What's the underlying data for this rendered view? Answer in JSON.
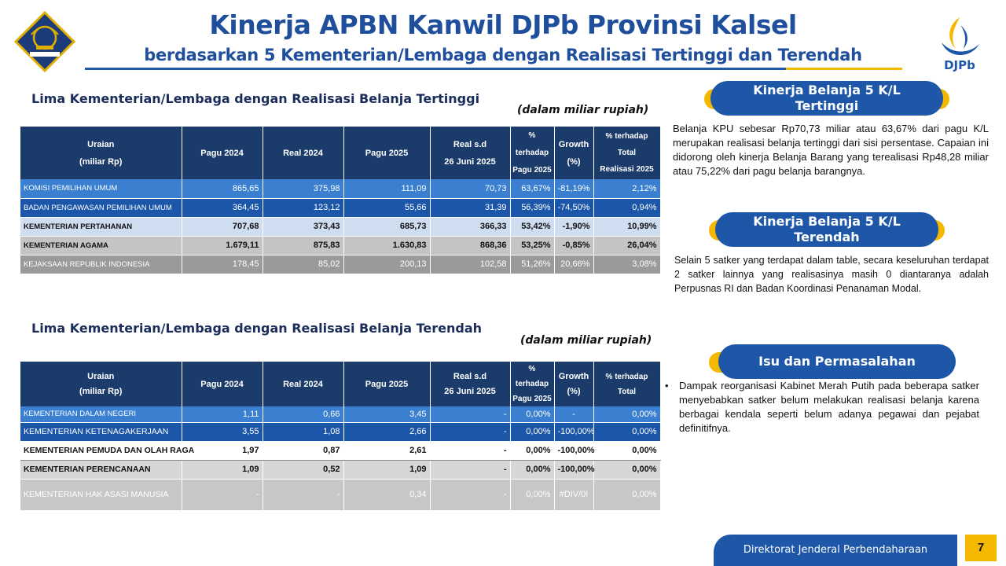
{
  "header": {
    "title": "Kinerja APBN Kanwil DJPb Provinsi Kalsel",
    "subtitle": "berdasarkan 5 Kementerian/Lembaga dengan Realisasi Tertinggi dan Terendah",
    "right_logo_text": "DJPb"
  },
  "colors": {
    "brand_blue": "#1e57a8",
    "accent_yellow": "#f5b800",
    "table_header": "#1b3b6a"
  },
  "top_table": {
    "title": "Lima Kementerian/Lembaga dengan Realisasi Belanja Tertinggi",
    "unit_note": "(dalam miliar rupiah)",
    "headers": {
      "uraian_1": "Uraian",
      "uraian_2": "(miliar Rp)",
      "pagu2024": "Pagu 2024",
      "real2024": "Real 2024",
      "pagu2025": "Pagu 2025",
      "real_1": "Real s.d",
      "real_2": "26 Juni 2025",
      "pct_1": "% terhadap",
      "pct_2": "Pagu 2025",
      "growth_1": "Growth",
      "growth_2": "(%)",
      "total_1": "% terhadap",
      "total_2": "Total",
      "total_3": "Realisasi 2025"
    },
    "rows": [
      {
        "name": "KOMISI PEMILIHAN UMUM",
        "pagu2024": "865,65",
        "real2024": "375,98",
        "pagu2025": "111,09",
        "real": "70,73",
        "pct": "63,67%",
        "growth": "-81,19%",
        "total": "2,12%"
      },
      {
        "name": "BADAN PENGAWASAN PEMILIHAN UMUM",
        "pagu2024": "364,45",
        "real2024": "123,12",
        "pagu2025": "55,66",
        "real": "31,39",
        "pct": "56,39%",
        "growth": "-74,50%",
        "total": "0,94%"
      },
      {
        "name": "KEMENTERIAN PERTAHANAN",
        "pagu2024": "707,68",
        "real2024": "373,43",
        "pagu2025": "685,73",
        "real": "366,33",
        "pct": "53,42%",
        "growth": "-1,90%",
        "total": "10,99%"
      },
      {
        "name": "KEMENTERIAN AGAMA",
        "pagu2024": "1.679,11",
        "real2024": "875,83",
        "pagu2025": "1.630,83",
        "real": "868,36",
        "pct": "53,25%",
        "growth": "-0,85%",
        "total": "26,04%"
      },
      {
        "name": "KEJAKSAAN REPUBLIK INDONESIA",
        "pagu2024": "178,45",
        "real2024": "85,02",
        "pagu2025": "200,13",
        "real": "102,58",
        "pct": "51,26%",
        "growth": "20,66%",
        "total": "3,08%"
      }
    ]
  },
  "bottom_table": {
    "title": "Lima Kementerian/Lembaga dengan Realisasi Belanja Terendah",
    "unit_note": "(dalam miliar rupiah)",
    "headers": {
      "uraian_1": "Uraian",
      "uraian_2": "(miliar Rp)",
      "pagu2024": "Pagu 2024",
      "real2024": "Real 2024",
      "pagu2025": "Pagu 2025",
      "real_1": "Real s.d",
      "real_2": "26 Juni 2025",
      "pct_1": "% terhadap",
      "pct_2": "Pagu 2025",
      "growth_1": "Growth",
      "growth_2": "(%)",
      "total_1": "% terhadap",
      "total_2": "Total"
    },
    "rows": [
      {
        "name": "KEMENTERIAN DALAM NEGERI",
        "pagu2024": "1,11",
        "real2024": "0,66",
        "pagu2025": "3,45",
        "real": "-",
        "pct": "0,00%",
        "growth": "-",
        "total": "0,00%"
      },
      {
        "name": "KEMENTERIAN KETENAGAKERJAAN",
        "pagu2024": "3,55",
        "real2024": "1,08",
        "pagu2025": "2,66",
        "real": "-",
        "pct": "0,00%",
        "growth": "-100,00%",
        "total": "0,00%"
      },
      {
        "name": "KEMENTERIAN PEMUDA DAN OLAH RAGA",
        "pagu2024": "1,97",
        "real2024": "0,87",
        "pagu2025": "2,61",
        "real": "-",
        "pct": "0,00%",
        "growth": "-100,00%",
        "total": "0,00%"
      },
      {
        "name": "KEMENTERIAN PERENCANAAN",
        "pagu2024": "1,09",
        "real2024": "0,52",
        "pagu2025": "1,09",
        "real": "-",
        "pct": "0,00%",
        "growth": "-100,00%",
        "total": "0,00%"
      },
      {
        "name": "KEMENTERIAN HAK ASASI MANUSIA",
        "pagu2024": "-",
        "real2024": "-",
        "pagu2025": "0,34",
        "real": "-",
        "pct": "0,00%",
        "growth": "#DIV/0!",
        "total": "0,00%"
      }
    ]
  },
  "right_panel": {
    "highest": {
      "heading_1": "Kinerja Belanja 5 K/L",
      "heading_2": "Tertinggi",
      "text": "Belanja KPU sebesar Rp70,73 miliar atau 63,67% dari pagu K/L merupakan realisasi belanja tertinggi dari sisi persentase. Capaian ini didorong oleh kinerja Belanja Barang yang terealisasi Rp48,28 miliar atau 75,22% dari pagu belanja barangnya."
    },
    "lowest": {
      "heading_1": "Kinerja Belanja 5 K/L",
      "heading_2": "Terendah",
      "text": "Selain 5 satker yang terdapat dalam table, secara keseluruhan terdapat 2 satker lainnya yang realisasinya masih 0 diantaranya adalah Perpusnas RI dan Badan Koordinasi Penanaman Modal."
    },
    "issues": {
      "heading": "Isu dan Permasalahan",
      "bullet": "Dampak reorganisasi Kabinet Merah Putih pada beberapa satker menyebabkan satker belum melakukan realisasi belanja karena berbagai kendala seperti belum adanya pegawai dan pejabat definitifnya."
    }
  },
  "footer": {
    "label": "Direktorat Jenderal Perbendaharaan",
    "page": "7"
  }
}
